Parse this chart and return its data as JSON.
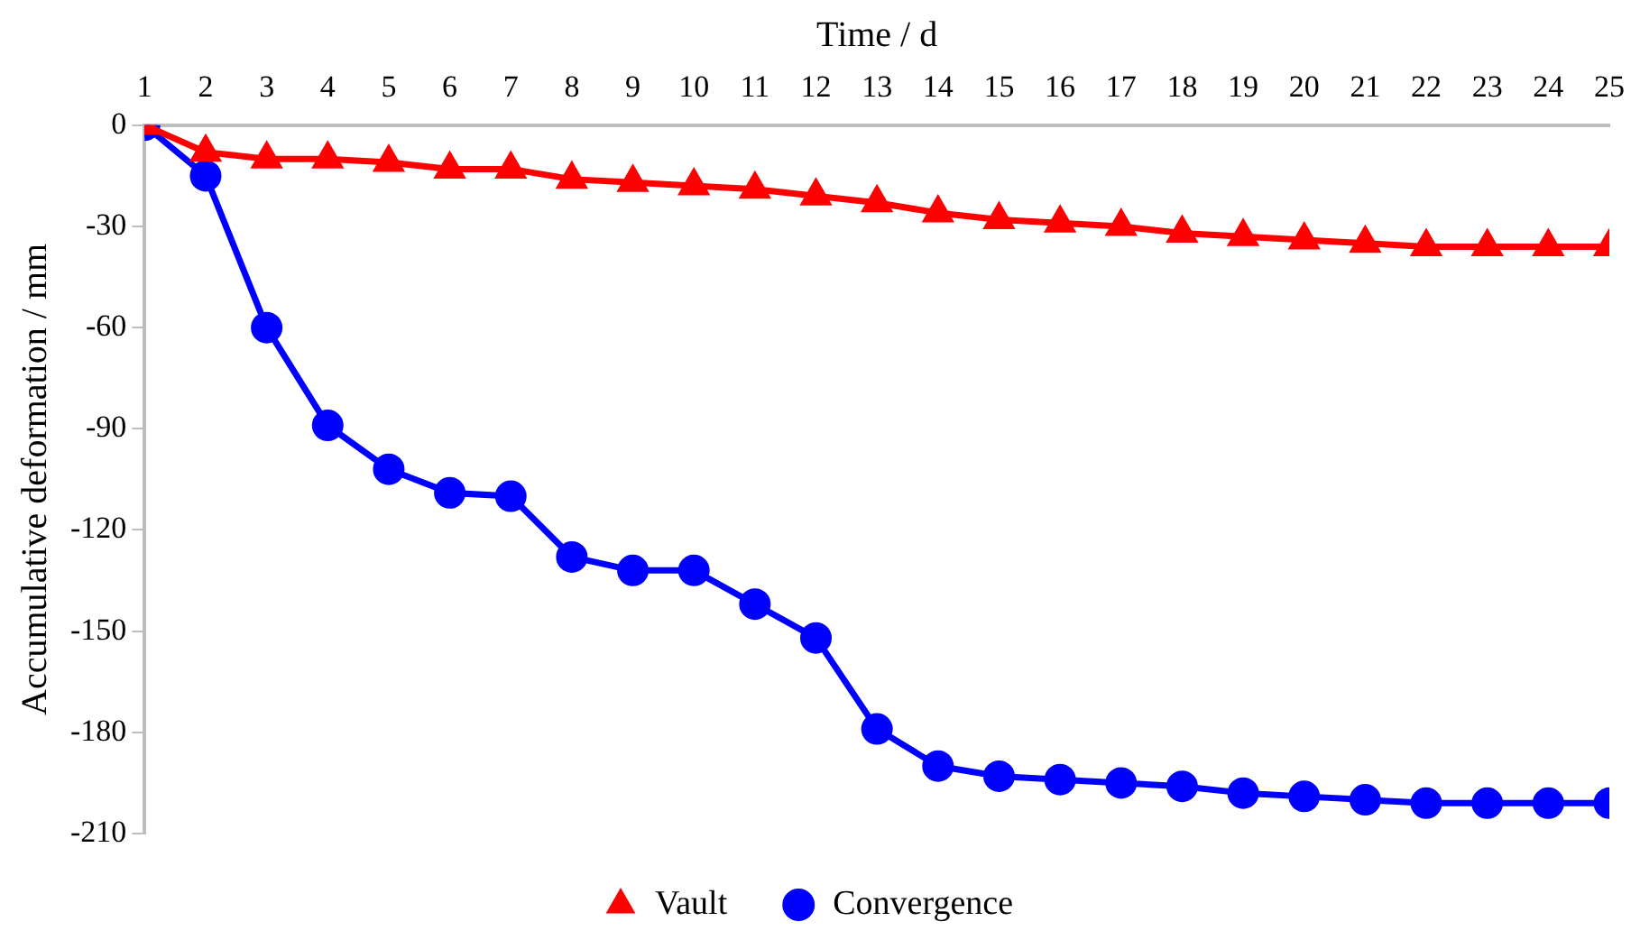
{
  "chart_data": {
    "type": "line",
    "xlabel": "Time / d",
    "ylabel": "Accumulative deformation / mm",
    "x": [
      1,
      2,
      3,
      4,
      5,
      6,
      7,
      8,
      9,
      10,
      11,
      12,
      13,
      14,
      15,
      16,
      17,
      18,
      19,
      20,
      21,
      22,
      23,
      24,
      25
    ],
    "xlim": [
      1,
      25
    ],
    "xticks": [
      1,
      2,
      3,
      4,
      5,
      6,
      7,
      8,
      9,
      10,
      11,
      12,
      13,
      14,
      15,
      16,
      17,
      18,
      19,
      20,
      21,
      22,
      23,
      24,
      25
    ],
    "ylim": [
      -210,
      0
    ],
    "yticks": [
      0,
      -30,
      -60,
      -90,
      -120,
      -150,
      -180,
      -210
    ],
    "series": [
      {
        "name": "Vault",
        "color": "#ff0000",
        "marker": "triangle",
        "values": [
          0,
          -8,
          -10,
          -10,
          -11,
          -13,
          -13,
          -16,
          -17,
          -18,
          -19,
          -21,
          -23,
          -26,
          -28,
          -29,
          -30,
          -32,
          -33,
          -34,
          -35,
          -36,
          -36,
          -36,
          -36
        ]
      },
      {
        "name": "Convergence",
        "color": "#0000ff",
        "marker": "circle",
        "values": [
          0,
          -15,
          -60,
          -89,
          -102,
          -109,
          -110,
          -128,
          -132,
          -132,
          -142,
          -152,
          -179,
          -190,
          -193,
          -194,
          -195,
          -196,
          -198,
          -199,
          -200,
          -201,
          -201,
          -201,
          -201
        ]
      }
    ],
    "grid": false,
    "legend": "bottom",
    "line_style": "solid"
  }
}
